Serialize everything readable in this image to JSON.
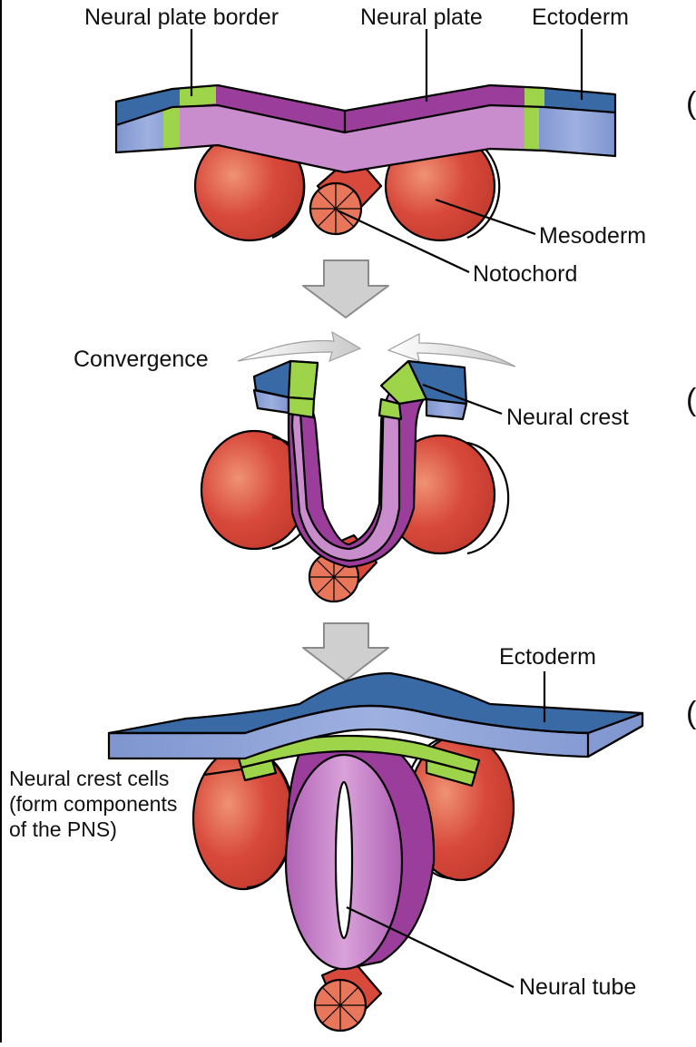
{
  "labels": {
    "neural_plate_border": "Neural plate border",
    "neural_plate": "Neural plate",
    "ectoderm_top": "Ectoderm",
    "mesoderm": "Mesoderm",
    "notochord": "Notochord",
    "convergence": "Convergence",
    "neural_crest": "Neural crest",
    "ectoderm_bottom": "Ectoderm",
    "neural_crest_cells_line1": "Neural crest cells",
    "neural_crest_cells_line2": "(form components",
    "neural_crest_cells_line3": "of the PNS)",
    "neural_tube": "Neural tube",
    "stage_marker_a": "(",
    "stage_marker_b": "(",
    "stage_marker_c": "("
  },
  "colors": {
    "ectoderm_top": "#3a6aa6",
    "ectoderm_front": "#8fa3d8",
    "neural_plate_top": "#9b3d9a",
    "neural_plate_front": "#c98ccc",
    "neural_border": "#9ed44a",
    "mesoderm": "#d8493b",
    "mesoderm_highlight": "#ef8f70",
    "notochord": "#e8765a",
    "arrow_gray": "#cfcfcf"
  }
}
